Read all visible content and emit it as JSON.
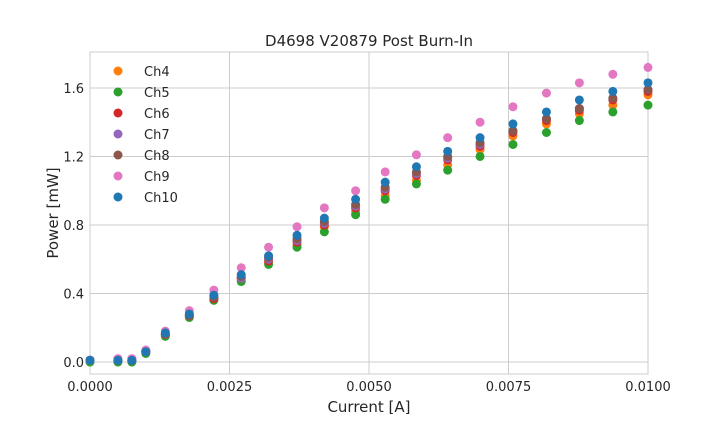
{
  "chart_data": {
    "type": "scatter",
    "title": "D4698 V20879 Post Burn-In",
    "xlabel": "Current [A]",
    "ylabel": "Power [mW]",
    "xlim": [
      0.0,
      0.01
    ],
    "ylim": [
      -0.07,
      1.81
    ],
    "xticks": [
      0.0,
      0.0025,
      0.005,
      0.0075,
      0.01
    ],
    "xtick_labels": [
      "0.0000",
      "0.0025",
      "0.0050",
      "0.0075",
      "0.0100"
    ],
    "yticks": [
      0.0,
      0.4,
      0.8,
      1.2,
      1.6
    ],
    "ytick_labels": [
      "0.0",
      "0.4",
      "0.8",
      "1.2",
      "1.6"
    ],
    "grid": true,
    "legend_position": "upper-left",
    "x": [
      0.0,
      0.0005,
      0.00075,
      0.001,
      0.00135,
      0.00178,
      0.00222,
      0.00271,
      0.0032,
      0.00371,
      0.0042,
      0.00476,
      0.00529,
      0.00585,
      0.00641,
      0.00699,
      0.00758,
      0.00818,
      0.00877,
      0.00937,
      0.01
    ],
    "series": [
      {
        "name": "Ch4",
        "color": "#ff7f0e",
        "values": [
          0.01,
          0.01,
          0.01,
          0.06,
          0.16,
          0.27,
          0.37,
          0.48,
          0.58,
          0.68,
          0.79,
          0.88,
          0.97,
          1.06,
          1.15,
          1.24,
          1.32,
          1.39,
          1.45,
          1.5,
          1.56
        ]
      },
      {
        "name": "Ch5",
        "color": "#2ca02c",
        "values": [
          0.0,
          0.0,
          0.0,
          0.05,
          0.15,
          0.26,
          0.36,
          0.47,
          0.57,
          0.67,
          0.76,
          0.86,
          0.95,
          1.04,
          1.12,
          1.2,
          1.27,
          1.34,
          1.41,
          1.46,
          1.5
        ]
      },
      {
        "name": "Ch6",
        "color": "#d62728",
        "values": [
          0.01,
          0.01,
          0.01,
          0.06,
          0.16,
          0.27,
          0.37,
          0.49,
          0.59,
          0.7,
          0.8,
          0.9,
          1.0,
          1.09,
          1.18,
          1.26,
          1.34,
          1.41,
          1.47,
          1.53,
          1.58
        ]
      },
      {
        "name": "Ch7",
        "color": "#9467bd",
        "values": [
          0.01,
          0.01,
          0.01,
          0.06,
          0.16,
          0.27,
          0.38,
          0.49,
          0.6,
          0.71,
          0.81,
          0.91,
          1.01,
          1.1,
          1.19,
          1.27,
          1.35,
          1.42,
          1.48,
          1.54,
          1.59
        ]
      },
      {
        "name": "Ch8",
        "color": "#8c564b",
        "values": [
          0.01,
          0.01,
          0.01,
          0.06,
          0.16,
          0.27,
          0.38,
          0.5,
          0.61,
          0.72,
          0.82,
          0.92,
          1.02,
          1.11,
          1.2,
          1.28,
          1.35,
          1.42,
          1.48,
          1.54,
          1.59
        ]
      },
      {
        "name": "Ch9",
        "color": "#e377c2",
        "values": [
          0.01,
          0.02,
          0.02,
          0.07,
          0.18,
          0.3,
          0.42,
          0.55,
          0.67,
          0.79,
          0.9,
          1.0,
          1.11,
          1.21,
          1.31,
          1.4,
          1.49,
          1.57,
          1.63,
          1.68,
          1.72
        ]
      },
      {
        "name": "Ch10",
        "color": "#1f77b4",
        "values": [
          0.01,
          0.01,
          0.01,
          0.06,
          0.17,
          0.28,
          0.39,
          0.51,
          0.62,
          0.74,
          0.84,
          0.95,
          1.05,
          1.14,
          1.23,
          1.31,
          1.39,
          1.46,
          1.53,
          1.58,
          1.63
        ]
      }
    ]
  }
}
